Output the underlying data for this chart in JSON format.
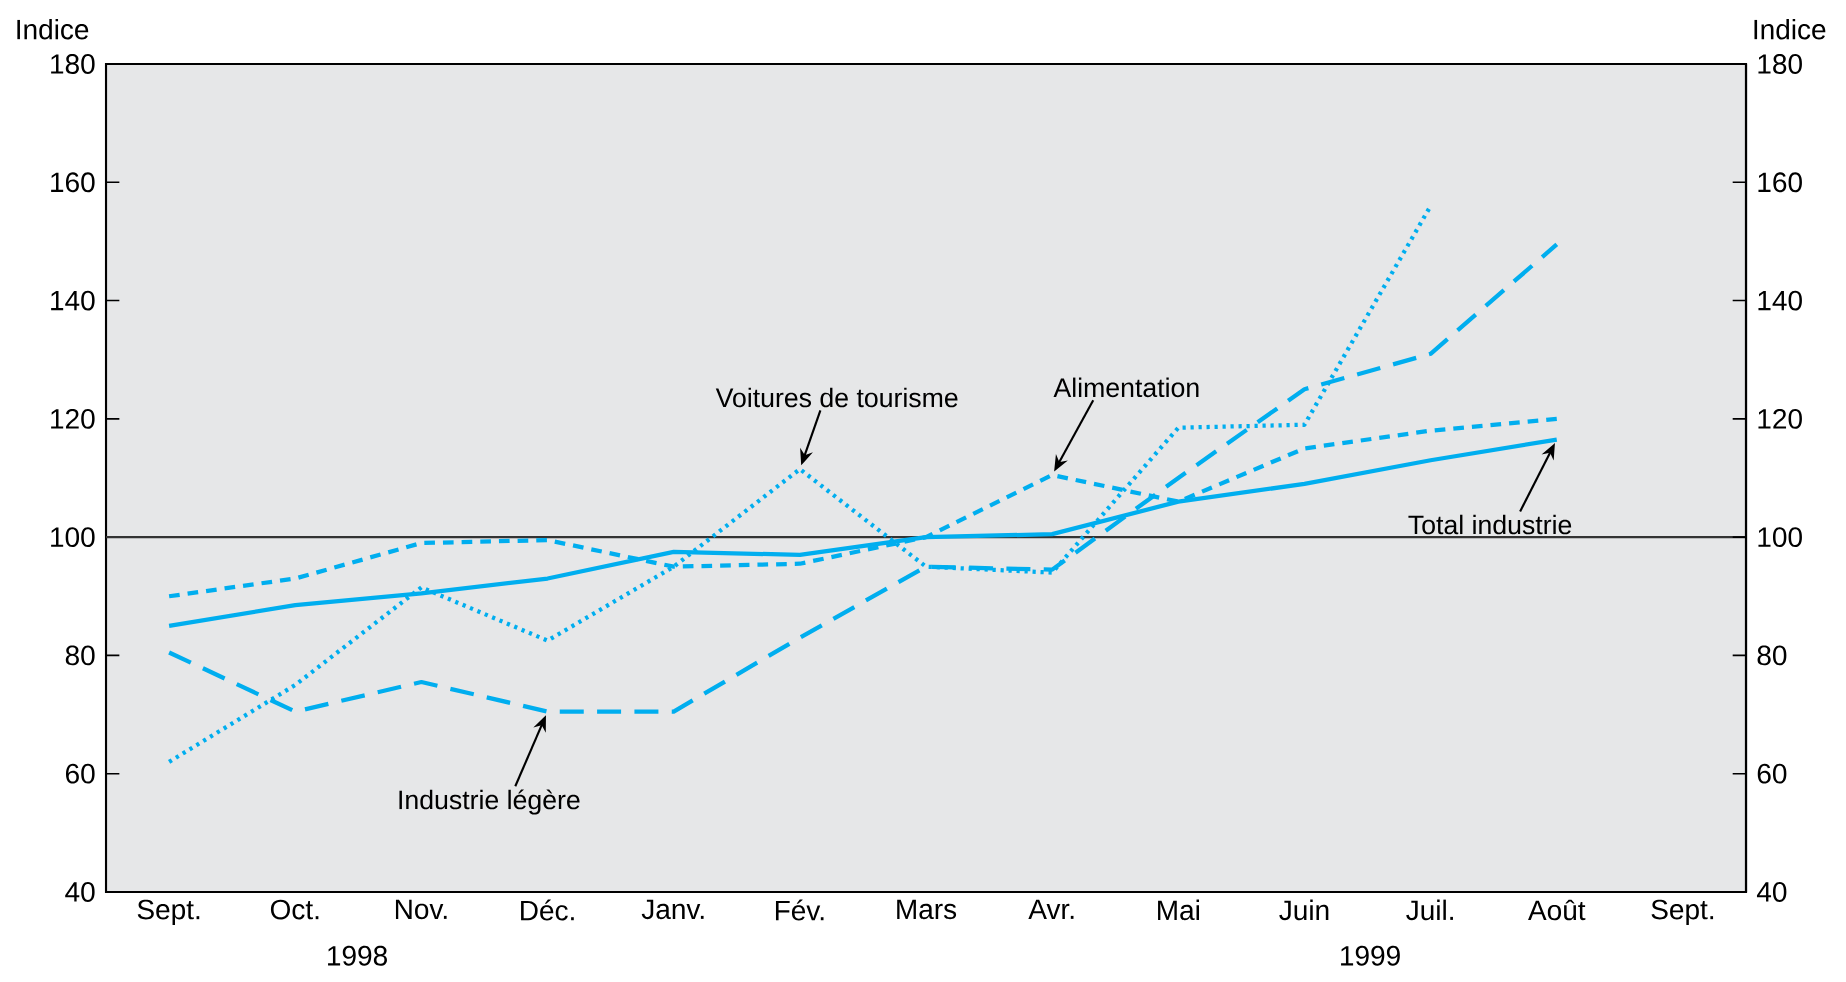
{
  "chart_data": {
    "type": "line",
    "ylabel": "Indice",
    "y2label": "Indice",
    "categories": [
      "Sept.",
      "Oct.",
      "Nov.",
      "Déc.",
      "Janv.",
      "Fév.",
      "Mars",
      "Avr.",
      "Mai",
      "Juin",
      "Juil.",
      "Août",
      "Sept."
    ],
    "series": [
      {
        "color": "#00aeef",
        "line_style": "solid",
        "values": [
          85,
          88.5,
          90.5,
          93,
          97.5,
          97,
          100,
          100.5,
          106,
          109,
          113,
          116.5,
          null
        ]
      },
      {
        "color": "#00aeef",
        "line_style": "dashed",
        "values": [
          90,
          93,
          99,
          99.5,
          95,
          95.5,
          100,
          110.5,
          106,
          115,
          118,
          120,
          null
        ]
      },
      {
        "color": "#00aeef",
        "line_style": "dotted",
        "values": [
          62,
          75,
          91.5,
          82.5,
          95,
          111.5,
          95,
          94,
          118.5,
          119,
          156,
          null,
          null
        ]
      },
      {
        "color": "#00aeef",
        "line_style": "long dashed",
        "values": [
          80.5,
          70.5,
          75.5,
          70.5,
          70.5,
          83,
          95,
          94.5,
          110,
          125,
          131,
          149.5,
          null
        ]
      }
    ],
    "ylim": [
      40,
      180
    ],
    "yticks": [
      40,
      60,
      80,
      100,
      120,
      140,
      160,
      180
    ],
    "y2lim": [
      40,
      180
    ],
    "y2ticks": [
      40,
      60,
      80,
      100,
      120,
      140,
      160,
      180
    ],
    "ref_lines": [
      {
        "axis": "y",
        "value": 100,
        "color": "#333333"
      }
    ],
    "annotations": [
      {
        "text": "Voitures de tourisme",
        "x": "Fév.",
        "y": 111.5
      },
      {
        "text": "Alimentation",
        "x": "Avr.",
        "y": 110.5
      },
      {
        "text": "Total industrie",
        "x": "Août",
        "y": 116.5
      },
      {
        "text": "Industrie légère",
        "x": "Déc.",
        "y": 70.5
      },
      "1998",
      "1999"
    ],
    "grid": false
  }
}
